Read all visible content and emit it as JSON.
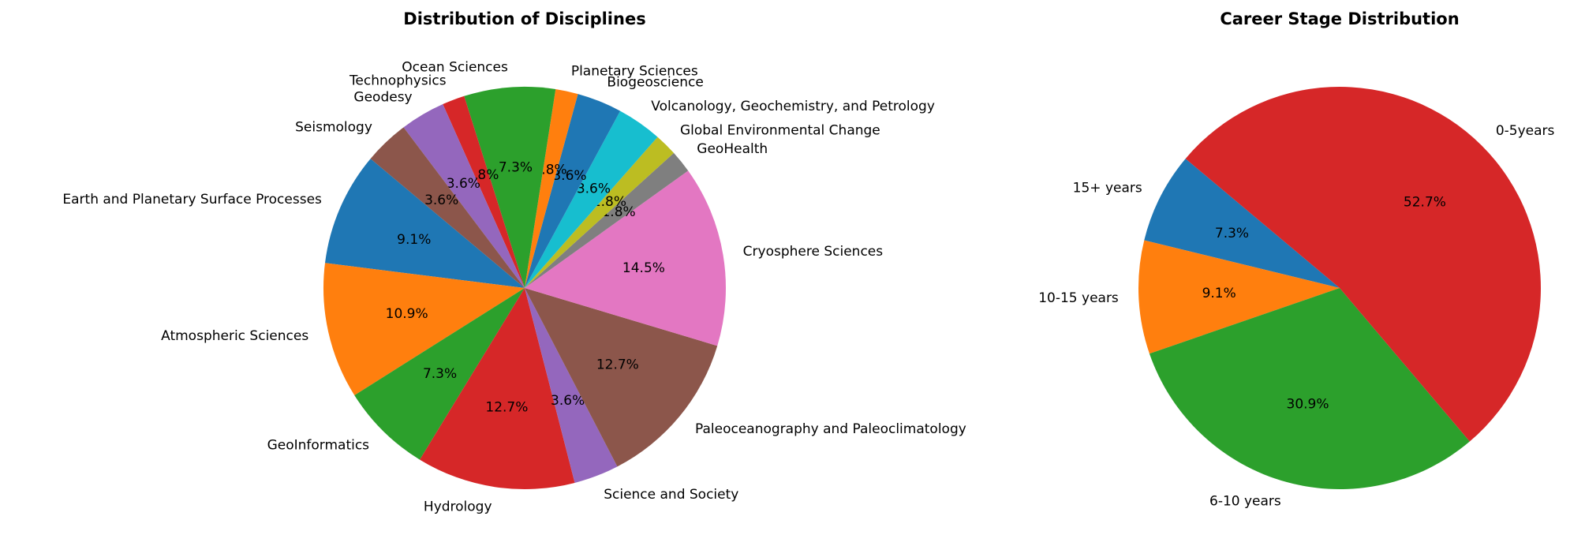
{
  "chart_data": [
    {
      "type": "pie",
      "title": "Distribution of Disciplines",
      "start_angle": 140,
      "direction": "counterclockwise",
      "categories": [
        "Earth and Planetary Surface Processes",
        "Atmospheric Sciences",
        "GeoInformatics",
        "Hydrology",
        "Science and Society",
        "Paleoceanography and Paleoclimatology",
        "Cryosphere Sciences",
        "GeoHealth",
        "Global Environmental Change",
        "Volcanology, Geochemistry, and Petrology",
        "Biogeoscience",
        "Planetary Sciences",
        "Ocean Sciences",
        "Technophysics",
        "Geodesy",
        "Seismology"
      ],
      "values": [
        9.1,
        10.9,
        7.3,
        12.7,
        3.6,
        12.7,
        14.5,
        1.8,
        1.8,
        3.6,
        3.6,
        1.8,
        7.3,
        1.8,
        3.6,
        3.6
      ],
      "value_labels": [
        "9.1%",
        "10.9%",
        "7.3%",
        "12.7%",
        "3.6%",
        "12.7%",
        "14.5%",
        "1.8%",
        "1.8%",
        "3.6%",
        "3.6%",
        "1.8%",
        "7.3%",
        "1.8%",
        "3.6%",
        "3.6%"
      ],
      "colors": [
        "#1f77b4",
        "#ff7f0e",
        "#2ca02c",
        "#d62728",
        "#9467bd",
        "#8c564b",
        "#e377c2",
        "#7f7f7f",
        "#bcbd22",
        "#17becf",
        "#1f77b4",
        "#ff7f0e",
        "#2ca02c",
        "#d62728",
        "#9467bd",
        "#8c564b"
      ]
    },
    {
      "type": "pie",
      "title": "Career Stage Distribution",
      "start_angle": 140,
      "direction": "counterclockwise",
      "categories": [
        "15+ years",
        "10-15 years",
        "6-10 years",
        "0-5years"
      ],
      "values": [
        7.3,
        9.1,
        30.9,
        52.7
      ],
      "value_labels": [
        "7.3%",
        "9.1%",
        "30.9%",
        "52.7%"
      ],
      "colors": [
        "#1f77b4",
        "#ff7f0e",
        "#2ca02c",
        "#d62728"
      ]
    }
  ]
}
